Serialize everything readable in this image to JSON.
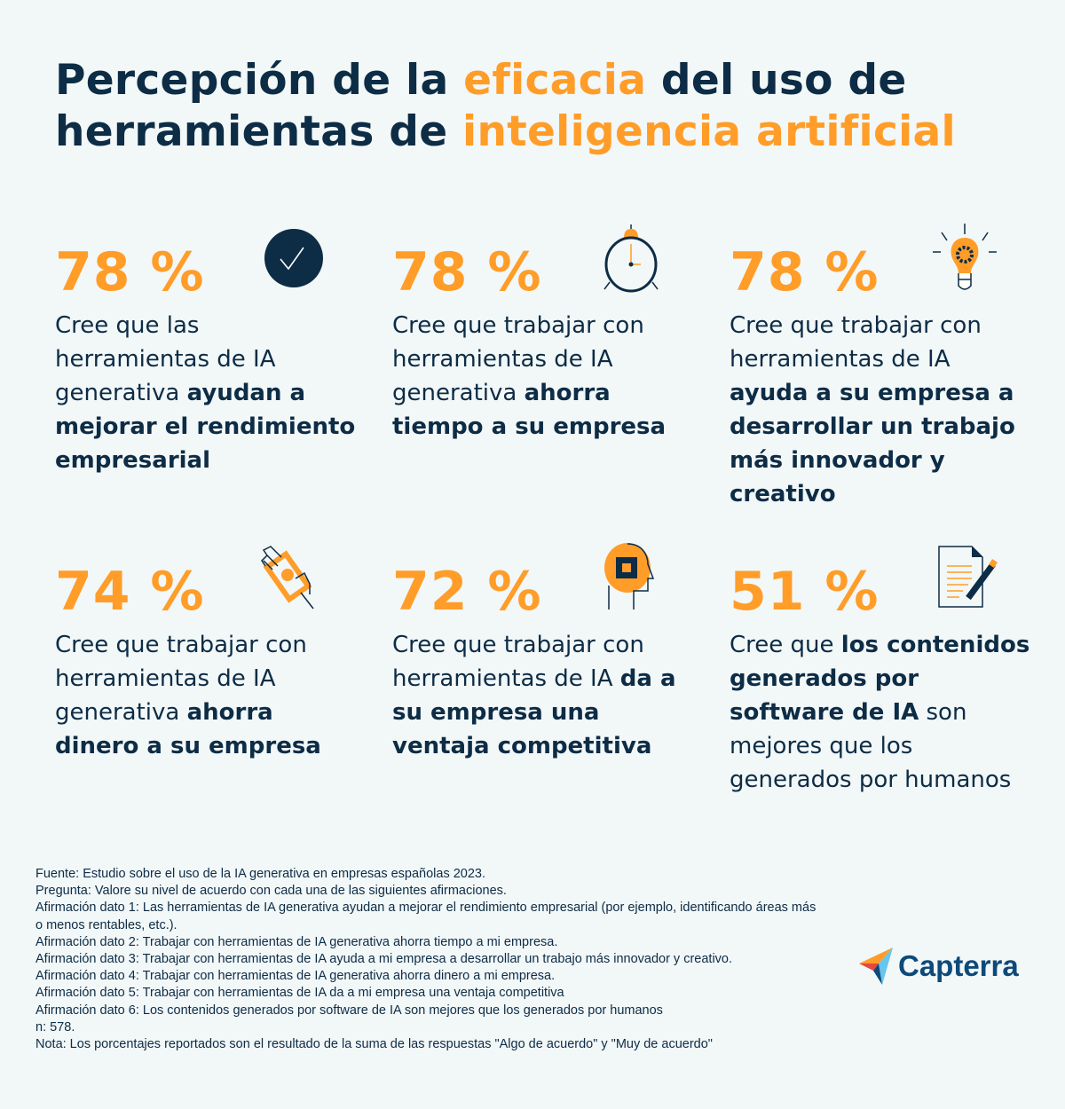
{
  "title": {
    "line1": [
      {
        "text": "Percepción de la ",
        "accent": false
      },
      {
        "text": "eficacia",
        "accent": true
      },
      {
        "text": " del uso de",
        "accent": false
      }
    ],
    "line2": [
      {
        "text": "herramientas de ",
        "accent": false
      },
      {
        "text": "inteligencia artificial",
        "accent": true
      }
    ]
  },
  "colors": {
    "background": "#f2f7f8",
    "navy": "#0d2c45",
    "orange": "#ff9d28"
  },
  "stats": [
    {
      "value": "78 %",
      "icon": "check-circle-icon",
      "segments": [
        {
          "text": "Cree que las herramientas de IA generativa ",
          "bold": false
        },
        {
          "text": "ayudan a mejorar el rendimiento empresarial",
          "bold": true
        }
      ]
    },
    {
      "value": "78 %",
      "icon": "alarm-clock-icon",
      "segments": [
        {
          "text": "Cree que trabajar con herramientas de IA generativa ",
          "bold": false
        },
        {
          "text": "ahorra tiempo a su empresa",
          "bold": true
        }
      ]
    },
    {
      "value": "78 %",
      "icon": "lightbulb-gear-icon",
      "segments": [
        {
          "text": "Cree que trabajar con herramientas de IA ",
          "bold": false
        },
        {
          "text": "ayuda a su empresa a desarrollar un trabajo más innovador y creativo",
          "bold": true
        }
      ]
    },
    {
      "value": "74 %",
      "icon": "hand-money-icon",
      "segments": [
        {
          "text": "Cree que trabajar con herramientas de IA generativa ",
          "bold": false
        },
        {
          "text": "ahorra dinero a su empresa",
          "bold": true
        }
      ]
    },
    {
      "value": "72 %",
      "icon": "head-chip-icon",
      "segments": [
        {
          "text": "Cree que trabajar con herramientas de IA ",
          "bold": false
        },
        {
          "text": "da a su empresa una ventaja competitiva",
          "bold": true
        }
      ]
    },
    {
      "value": "51 %",
      "icon": "document-pen-icon",
      "segments": [
        {
          "text": "Cree que ",
          "bold": false
        },
        {
          "text": "los contenidos generados por software de IA",
          "bold": true
        },
        {
          "text": " son mejores que los generados por humanos",
          "bold": false
        }
      ]
    }
  ],
  "footnotes": [
    "Fuente: Estudio sobre el uso de la IA generativa en empresas españolas 2023.",
    "Pregunta: Valore su nivel de acuerdo con cada una de las siguientes afirmaciones.",
    "Afirmación dato 1: Las herramientas de IA generativa ayudan a mejorar el rendimiento empresarial (por ejemplo, identificando áreas más o menos rentables, etc.).",
    "Afirmación dato 2: Trabajar con herramientas de IA generativa ahorra tiempo a mi empresa.",
    "Afirmación dato 3: Trabajar con herramientas de IA ayuda a mi empresa a desarrollar un trabajo más innovador y creativo.",
    "Afirmación dato 4: Trabajar con herramientas de IA generativa ahorra dinero a mi empresa.",
    "Afirmación dato 5: Trabajar con herramientas de IA da a mi empresa una ventaja competitiva",
    "Afirmación dato 6: Los contenidos generados por software de IA son mejores que los generados por humanos",
    "n: 578.",
    "Nota: Los porcentajes reportados son el resultado de la suma de las respuestas \"Algo de acuerdo\" y \"Muy de acuerdo\""
  ],
  "logo": {
    "text": "Capterra"
  }
}
